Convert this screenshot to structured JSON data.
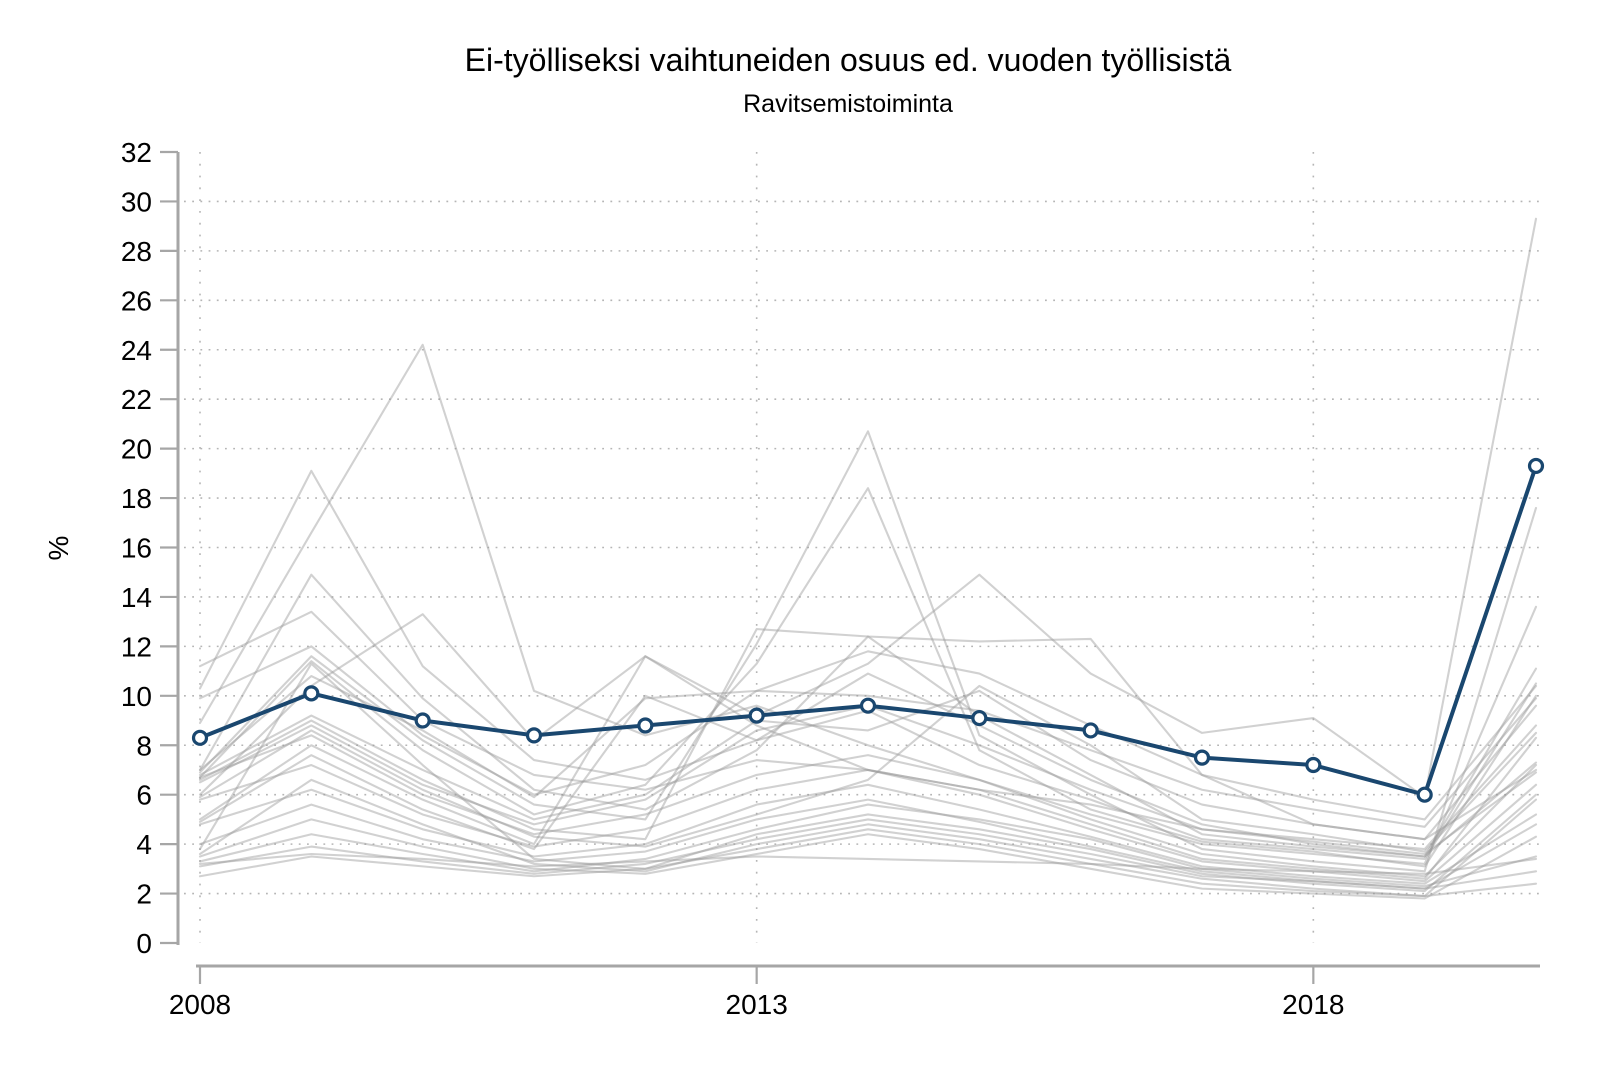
{
  "chart_data": {
    "type": "line",
    "title": "Ei-työlliseksi vaihtuneiden osuus ed. vuoden työllisistä",
    "subtitle": "Ravitsemistoiminta",
    "ylabel": "%",
    "xlabel": "",
    "x": [
      2008,
      2009,
      2010,
      2011,
      2012,
      2013,
      2014,
      2015,
      2016,
      2017,
      2018,
      2019,
      2020
    ],
    "xlim": [
      2008,
      2020
    ],
    "ylim": [
      0,
      32
    ],
    "x_ticks": [
      2008,
      2013,
      2018
    ],
    "x_tick_labels": [
      "2008",
      "2013",
      "2018"
    ],
    "y_ticks": [
      0,
      2,
      4,
      6,
      8,
      10,
      12,
      14,
      16,
      18,
      20,
      22,
      24,
      26,
      28,
      30,
      32
    ],
    "grid": {
      "style": "dotted",
      "horizontal_at": [
        2,
        4,
        6,
        8,
        10,
        12,
        14,
        16,
        18,
        20,
        22,
        24,
        26,
        28,
        30
      ],
      "vertical_at": [
        2008,
        2013,
        2018
      ]
    },
    "legend": "none",
    "highlight_series": {
      "label": "Ravitsemistoiminta",
      "marker": "open-circle",
      "values": [
        8.3,
        10.1,
        9.0,
        8.4,
        8.8,
        9.2,
        9.6,
        9.1,
        8.6,
        7.5,
        7.2,
        6.0,
        19.3
      ]
    },
    "background_series": [
      {
        "values": [
          11.2,
          13.4,
          9.0,
          6.8,
          6.2,
          7.4,
          7.0,
          6.2,
          5.6,
          4.6,
          4.2,
          3.8,
          8.8
        ]
      },
      {
        "values": [
          10.3,
          19.1,
          11.2,
          7.4,
          6.6,
          8.2,
          9.4,
          7.2,
          5.8,
          4.2,
          3.8,
          3.4,
          10.5
        ]
      },
      {
        "values": [
          8.9,
          16.6,
          24.2,
          10.2,
          8.4,
          9.6,
          8.0,
          6.6,
          5.2,
          4.0,
          3.6,
          3.2,
          13.6
        ]
      },
      {
        "values": [
          7.0,
          14.9,
          9.9,
          6.2,
          5.4,
          7.8,
          12.4,
          9.2,
          6.8,
          4.4,
          3.9,
          3.5,
          11.1
        ]
      },
      {
        "values": [
          6.9,
          11.6,
          8.2,
          5.6,
          5.0,
          12.1,
          20.7,
          8.4,
          6.0,
          3.8,
          3.3,
          2.9,
          17.6
        ]
      },
      {
        "values": [
          6.7,
          11.4,
          7.8,
          5.2,
          6.4,
          11.3,
          18.4,
          7.8,
          5.4,
          4.1,
          3.7,
          3.1,
          10.0
        ]
      },
      {
        "values": [
          6.0,
          10.4,
          13.3,
          8.2,
          11.6,
          9.2,
          11.3,
          14.9,
          10.9,
          8.5,
          9.1,
          5.9,
          29.3
        ]
      },
      {
        "values": [
          6.6,
          9.0,
          6.6,
          4.6,
          4.2,
          12.7,
          12.4,
          12.2,
          12.3,
          6.8,
          4.8,
          4.2,
          9.6
        ]
      },
      {
        "values": [
          5.9,
          8.6,
          6.2,
          4.3,
          3.9,
          5.2,
          6.6,
          10.4,
          8.0,
          5.0,
          4.4,
          3.7,
          8.5
        ]
      },
      {
        "values": [
          5.0,
          8.0,
          5.8,
          4.0,
          11.6,
          8.8,
          7.0,
          6.2,
          4.8,
          3.4,
          3.0,
          2.6,
          8.3
        ]
      },
      {
        "values": [
          4.9,
          7.6,
          5.4,
          3.8,
          10.0,
          8.2,
          10.9,
          8.8,
          6.6,
          4.8,
          4.0,
          3.5,
          7.3
        ]
      },
      {
        "values": [
          6.8,
          9.2,
          7.0,
          5.0,
          6.0,
          9.0,
          8.6,
          10.2,
          7.4,
          5.6,
          4.8,
          4.2,
          7.0
        ]
      },
      {
        "values": [
          6.5,
          8.8,
          6.4,
          4.8,
          5.8,
          8.6,
          9.6,
          8.0,
          6.2,
          4.6,
          4.1,
          3.6,
          6.9
        ]
      },
      {
        "values": [
          3.8,
          11.3,
          7.2,
          3.4,
          3.0,
          4.4,
          5.2,
          4.6,
          3.8,
          2.8,
          2.4,
          2.1,
          6.0
        ]
      },
      {
        "values": [
          3.6,
          6.6,
          4.8,
          3.2,
          2.9,
          4.0,
          4.8,
          4.2,
          3.4,
          2.6,
          2.2,
          1.9,
          5.8
        ]
      },
      {
        "values": [
          3.5,
          5.0,
          3.9,
          3.0,
          2.8,
          3.6,
          4.4,
          3.8,
          3.0,
          2.2,
          2.0,
          1.8,
          4.3
        ]
      },
      {
        "values": [
          3.3,
          4.4,
          3.6,
          2.9,
          3.4,
          4.6,
          5.6,
          5.0,
          4.2,
          3.0,
          2.6,
          2.3,
          3.5
        ]
      },
      {
        "values": [
          3.1,
          3.9,
          3.3,
          2.8,
          3.2,
          4.2,
          5.0,
          4.4,
          3.6,
          2.7,
          2.5,
          2.2,
          2.9
        ]
      },
      {
        "values": [
          2.7,
          3.5,
          3.1,
          2.7,
          3.0,
          3.8,
          4.6,
          4.0,
          3.2,
          2.4,
          2.1,
          1.9,
          2.4
        ]
      },
      {
        "values": [
          7.0,
          10.8,
          8.6,
          5.9,
          9.9,
          10.2,
          11.8,
          10.9,
          8.8,
          6.8,
          5.8,
          5.0,
          10.4
        ]
      },
      {
        "values": [
          6.7,
          8.4,
          6.0,
          4.4,
          5.2,
          6.8,
          7.6,
          6.6,
          5.0,
          3.6,
          3.1,
          2.7,
          7.2
        ]
      },
      {
        "values": [
          5.8,
          7.2,
          5.2,
          3.9,
          4.6,
          6.2,
          7.0,
          6.0,
          4.6,
          3.3,
          2.9,
          2.5,
          6.4
        ]
      },
      {
        "values": [
          4.8,
          6.2,
          4.6,
          3.5,
          4.0,
          5.6,
          6.4,
          5.4,
          4.3,
          3.1,
          2.7,
          2.4,
          5.2
        ]
      },
      {
        "values": [
          4.0,
          5.6,
          4.2,
          3.3,
          3.7,
          5.0,
          5.8,
          4.9,
          3.9,
          2.9,
          2.5,
          2.2,
          4.8
        ]
      },
      {
        "values": [
          9.9,
          12.0,
          8.4,
          6.0,
          7.2,
          10.2,
          10.0,
          9.4,
          7.8,
          6.2,
          5.4,
          4.7,
          9.9
        ]
      },
      {
        "values": [
          3.2,
          3.6,
          3.4,
          3.1,
          3.3,
          3.5,
          3.4,
          3.3,
          3.2,
          3.0,
          2.9,
          2.8,
          3.4
        ]
      }
    ],
    "colors": {
      "highlight": "#1a476f",
      "marker_fill": "#ffffff",
      "background_lines": "#9a9a9a",
      "background_line_opacity": 0.45,
      "grid": "#b5b5b5",
      "axis": "#a6a6a6",
      "text": "#000000"
    }
  }
}
